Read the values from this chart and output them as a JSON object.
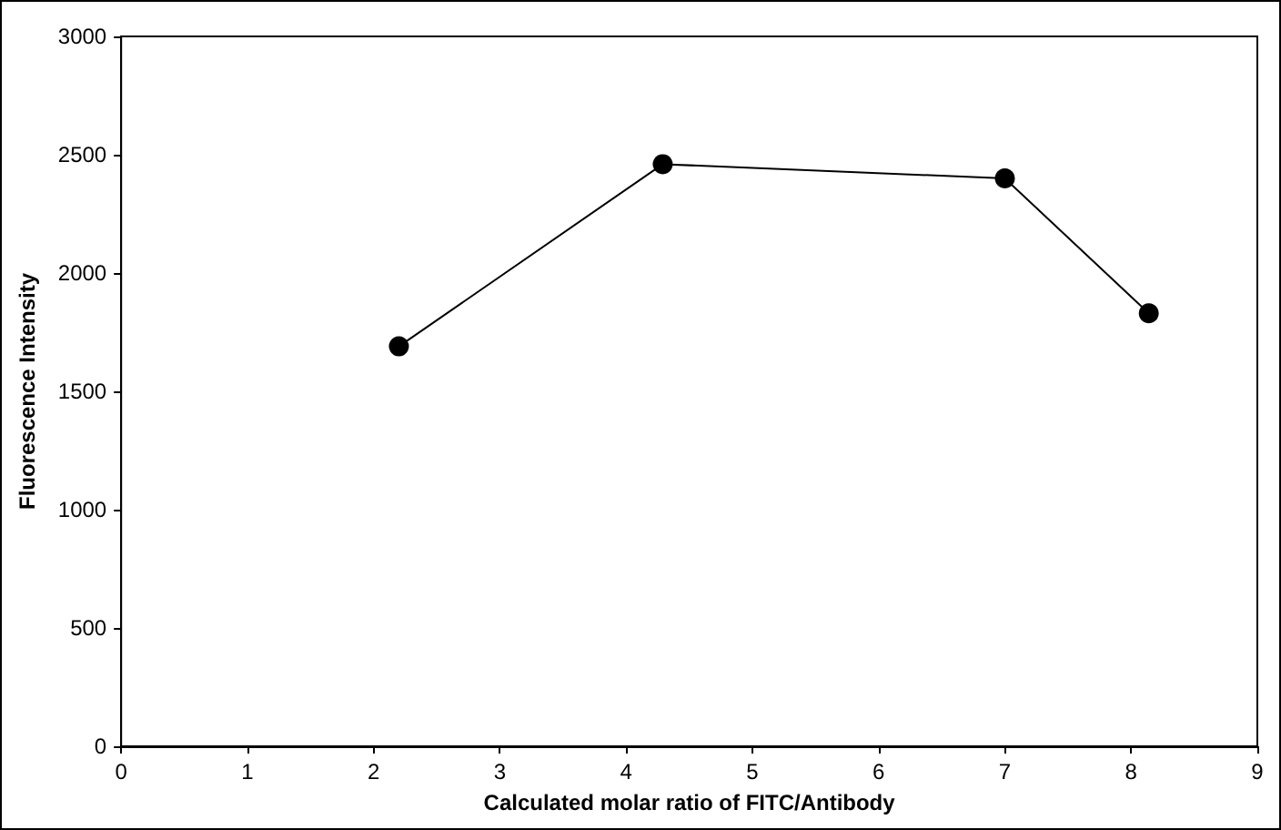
{
  "chart_data": {
    "type": "line",
    "xlabel": "Calculated molar ratio of FITC/Antibody",
    "ylabel": "Fluorescence Intensity",
    "x": [
      2.2,
      4.29,
      7.0,
      8.14
    ],
    "series": [
      {
        "color": "#000000",
        "values": [
          1690,
          2460,
          2400,
          1830
        ]
      }
    ],
    "xlim": [
      0,
      9
    ],
    "xticks": [
      0,
      1,
      2,
      3,
      4,
      5,
      6,
      7,
      8,
      9
    ],
    "ylim": [
      0,
      3000
    ],
    "yticks": [
      0,
      500,
      1000,
      1500,
      2000,
      2500,
      3000
    ],
    "grid": false,
    "marker": "circle",
    "line_style": "solid"
  }
}
